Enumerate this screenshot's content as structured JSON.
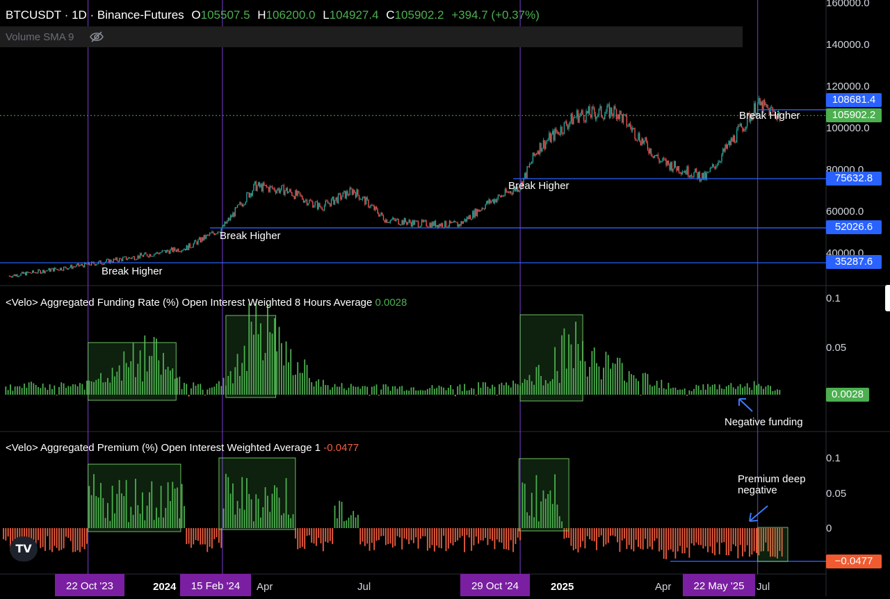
{
  "header": {
    "symbol": "BTCUSDT · 1D · Binance-Futures",
    "open_label": "O",
    "open": "105507.5",
    "high_label": "H",
    "high": "106200.0",
    "low_label": "L",
    "low": "104927.4",
    "close_label": "C",
    "close": "105902.2",
    "change": "+394.7 (+0.37%)"
  },
  "volume_indicator": {
    "label": "Volume SMA 9",
    "icon": "eye-slash-icon"
  },
  "colors": {
    "up": "#26a69a",
    "down": "#ef5350",
    "green": "#4caf50",
    "red_bar": "#f06040",
    "level": "#2962ff",
    "vline": "#7b3fd0",
    "tag_blue": "#2962ff",
    "tag_green": "#4caf50",
    "tag_red": "#f05a30"
  },
  "price_axis": {
    "ticks": [
      "160000.0",
      "140000.0",
      "120000.0",
      "100000.0",
      "80000.0",
      "60000.0",
      "40000.0"
    ],
    "tags": [
      {
        "label": "108681.4",
        "color": "blue"
      },
      {
        "label": "105902.2",
        "color": "green"
      },
      {
        "label": "75632.8",
        "color": "blue"
      },
      {
        "label": "52026.6",
        "color": "blue"
      },
      {
        "label": "35287.6",
        "color": "blue"
      }
    ]
  },
  "annotations": {
    "break1": "Break Higher",
    "break2": "Break Higher",
    "break3": "Break Higher",
    "break4": "Break Higher",
    "negative_funding": "Negative funding",
    "premium_line1": "Premium deep",
    "premium_line2": "negative"
  },
  "funding_panel": {
    "title": "<Velo> Aggregated Funding Rate (%) Open Interest Weighted 8 Hours Average",
    "value": "0.0028",
    "ticks": [
      "0.1",
      "0.05"
    ],
    "tag": "0.0028"
  },
  "premium_panel": {
    "title": "<Velo> Aggregated Premium (%) Open Interest Weighted Average 1",
    "value": "-0.0477",
    "ticks": [
      "0.1",
      "0.05",
      "0"
    ],
    "tag": "−0.0477"
  },
  "time_axis": {
    "labels": [
      "2024",
      "Apr",
      "Jul",
      "2025",
      "Apr",
      "Jul"
    ],
    "date_tags": [
      "22 Oct '23",
      "15 Feb '24",
      "29 Oct '24",
      "22 May '25"
    ]
  },
  "logo": "TV",
  "chart_data": [
    {
      "type": "line",
      "title": "BTCUSDT · 1D · Binance-Futures",
      "x": [
        "2023-08-15",
        "2023-10-22",
        "2023-12-01",
        "2024-01-15",
        "2024-02-15",
        "2024-03-14",
        "2024-04-10",
        "2024-05-10",
        "2024-06-07",
        "2024-07-05",
        "2024-08-05",
        "2024-09-06",
        "2024-10-01",
        "2024-10-29",
        "2024-11-13",
        "2024-12-17",
        "2025-01-20",
        "2025-02-27",
        "2025-04-07",
        "2025-05-22",
        "2025-06-10"
      ],
      "y": [
        29000,
        34500,
        38000,
        42500,
        52000,
        72000,
        70000,
        62000,
        70000,
        56000,
        54000,
        53500,
        64000,
        72000,
        90000,
        106000,
        108000,
        84000,
        76000,
        111000,
        105902
      ],
      "levels": [
        35287.6,
        52026.6,
        75632.8,
        108681.4
      ],
      "ylim": [
        20000,
        160000
      ]
    },
    {
      "type": "bar",
      "title": "<Velo> Aggregated Funding Rate (%) Open Interest Weighted 8 Hours Average",
      "x": [
        "2023-08",
        "2023-10-22",
        "2023-12",
        "2024-01",
        "2024-02-15",
        "2024-03",
        "2024-05",
        "2024-08",
        "2024-10-29",
        "2024-12",
        "2025-03",
        "2025-05-22",
        "2025-06"
      ],
      "y": [
        0.01,
        0.012,
        0.04,
        0.01,
        0.012,
        0.07,
        0.01,
        0.008,
        0.012,
        0.05,
        0.008,
        0.012,
        0.0028
      ],
      "ylim": [
        -0.02,
        0.11
      ]
    },
    {
      "type": "bar",
      "title": "<Velo> Aggregated Premium (%) Open Interest Weighted Average 1",
      "x": [
        "2023-08",
        "2023-11",
        "2024-01",
        "2024-02-15",
        "2024-03",
        "2024-05",
        "2024-06",
        "2024-08",
        "2024-11",
        "2025-01",
        "2025-04",
        "2025-06"
      ],
      "y": [
        -0.02,
        0.05,
        -0.015,
        0.06,
        0.05,
        -0.025,
        0.03,
        -0.02,
        0.06,
        -0.02,
        -0.03,
        -0.0477
      ],
      "ylim": [
        -0.06,
        0.12
      ]
    }
  ]
}
